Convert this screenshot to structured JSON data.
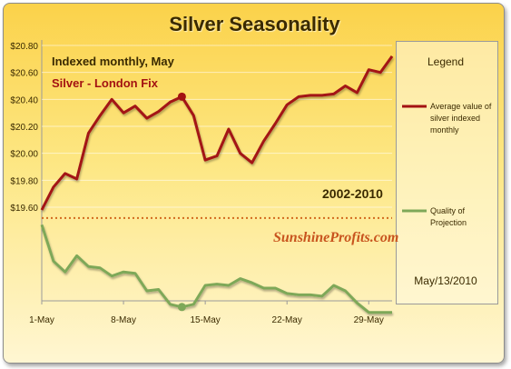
{
  "title": "Silver Seasonality",
  "chart_data": {
    "type": "line",
    "title": "Silver Seasonality",
    "annotations": [
      "Indexed monthly, May",
      "Silver - London Fix",
      "2002-2010"
    ],
    "watermark": "SunshineProfits.com",
    "date": "May/13/2010",
    "legend": {
      "title": "Legend",
      "placement": "right",
      "entries": [
        "Average value of silver indexed monthly",
        "Quality of Projection"
      ]
    },
    "xlim": [
      1,
      31
    ],
    "x_ticks": [
      {
        "value": 1,
        "label": "1-May"
      },
      {
        "value": 8,
        "label": "8-May"
      },
      {
        "value": 15,
        "label": "15-May"
      },
      {
        "value": 22,
        "label": "22-May"
      },
      {
        "value": 29,
        "label": "29-May"
      }
    ],
    "ylim": [
      19.6,
      20.8
    ],
    "y_ticks": [
      {
        "value": 20.8,
        "label": "$20.80"
      },
      {
        "value": 20.6,
        "label": "$20.60"
      },
      {
        "value": 20.4,
        "label": "$20.40"
      },
      {
        "value": 20.2,
        "label": "$20.20"
      },
      {
        "value": 20.0,
        "label": "$20.00"
      },
      {
        "value": 19.8,
        "label": "$19.80"
      },
      {
        "value": 19.6,
        "label": "$19.60"
      }
    ],
    "reference_line": 19.52,
    "highlight_x": 13,
    "series": [
      {
        "name": "Average value of silver indexed monthly",
        "color": "#a31212",
        "x": [
          1,
          2,
          3,
          4,
          5,
          6,
          7,
          8,
          9,
          10,
          11,
          12,
          13,
          14,
          15,
          16,
          17,
          18,
          19,
          20,
          21,
          22,
          23,
          24,
          25,
          26,
          27,
          28,
          29,
          30,
          31
        ],
        "values": [
          19.58,
          19.75,
          19.85,
          19.81,
          20.15,
          20.28,
          20.4,
          20.3,
          20.35,
          20.26,
          20.31,
          20.38,
          20.42,
          20.28,
          19.95,
          19.98,
          20.18,
          20.0,
          19.93,
          20.09,
          20.22,
          20.36,
          20.42,
          20.43,
          20.43,
          20.44,
          20.5,
          20.45,
          20.62,
          20.6,
          20.72
        ]
      },
      {
        "name": "Quality of Projection",
        "color": "#7ea859",
        "x": [
          1,
          2,
          3,
          4,
          5,
          6,
          7,
          8,
          9,
          10,
          11,
          12,
          13,
          14,
          15,
          16,
          17,
          18,
          19,
          20,
          21,
          22,
          23,
          24,
          25,
          26,
          27,
          28,
          29,
          30,
          31
        ],
        "values": [
          19.47,
          19.2,
          19.12,
          19.24,
          19.16,
          19.15,
          19.09,
          19.12,
          19.11,
          18.98,
          18.99,
          18.88,
          18.86,
          18.88,
          19.02,
          19.03,
          19.02,
          19.07,
          19.04,
          19.0,
          19.0,
          18.96,
          18.95,
          18.95,
          18.94,
          19.02,
          18.98,
          18.89,
          18.82,
          18.82,
          18.82
        ]
      }
    ]
  }
}
